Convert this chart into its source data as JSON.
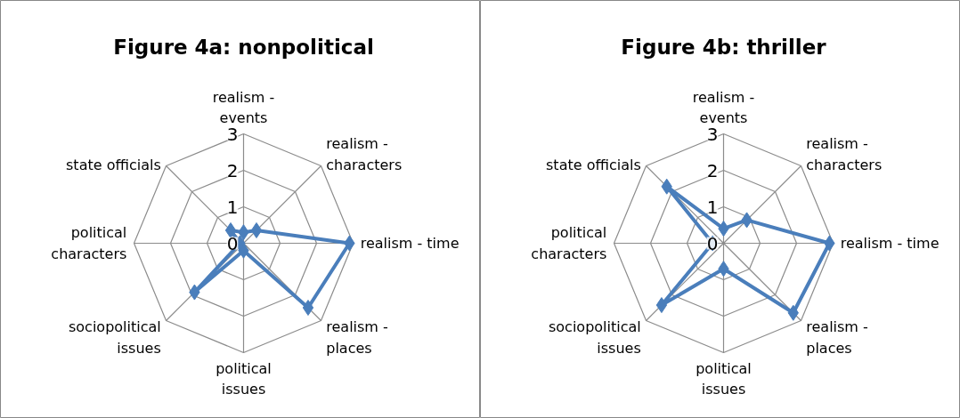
{
  "chart_data": [
    {
      "type": "radar",
      "title": "Figure 4a: nonpolitical",
      "categories": [
        "realism -\nevents",
        "realism -\ncharacters",
        "realism - time",
        "realism -\nplaces",
        "political\nissues",
        "sociopolitical\nissues",
        "political\ncharacters",
        "state officials"
      ],
      "ylim": [
        0,
        3
      ],
      "yticks": [
        0,
        1,
        2,
        3
      ],
      "marker": "diamond",
      "series": [
        {
          "color": "#4a7ebb",
          "values": [
            0.3,
            0.5,
            2.9,
            2.5,
            0.2,
            1.9,
            0.1,
            0.5
          ]
        }
      ]
    },
    {
      "type": "radar",
      "title": "Figure 4b: thriller",
      "categories": [
        "realism -\nevents",
        "realism -\ncharacters",
        "realism - time",
        "realism -\nplaces",
        "political\nissues",
        "sociopolitical\nissues",
        "political\ncharacters",
        "state officials"
      ],
      "ylim": [
        0,
        3
      ],
      "yticks": [
        0,
        1,
        2,
        3
      ],
      "marker": "diamond",
      "series": [
        {
          "color": "#4a7ebb",
          "values": [
            0.4,
            0.9,
            2.9,
            2.7,
            0.7,
            2.4,
            0.3,
            2.2
          ]
        }
      ]
    }
  ]
}
